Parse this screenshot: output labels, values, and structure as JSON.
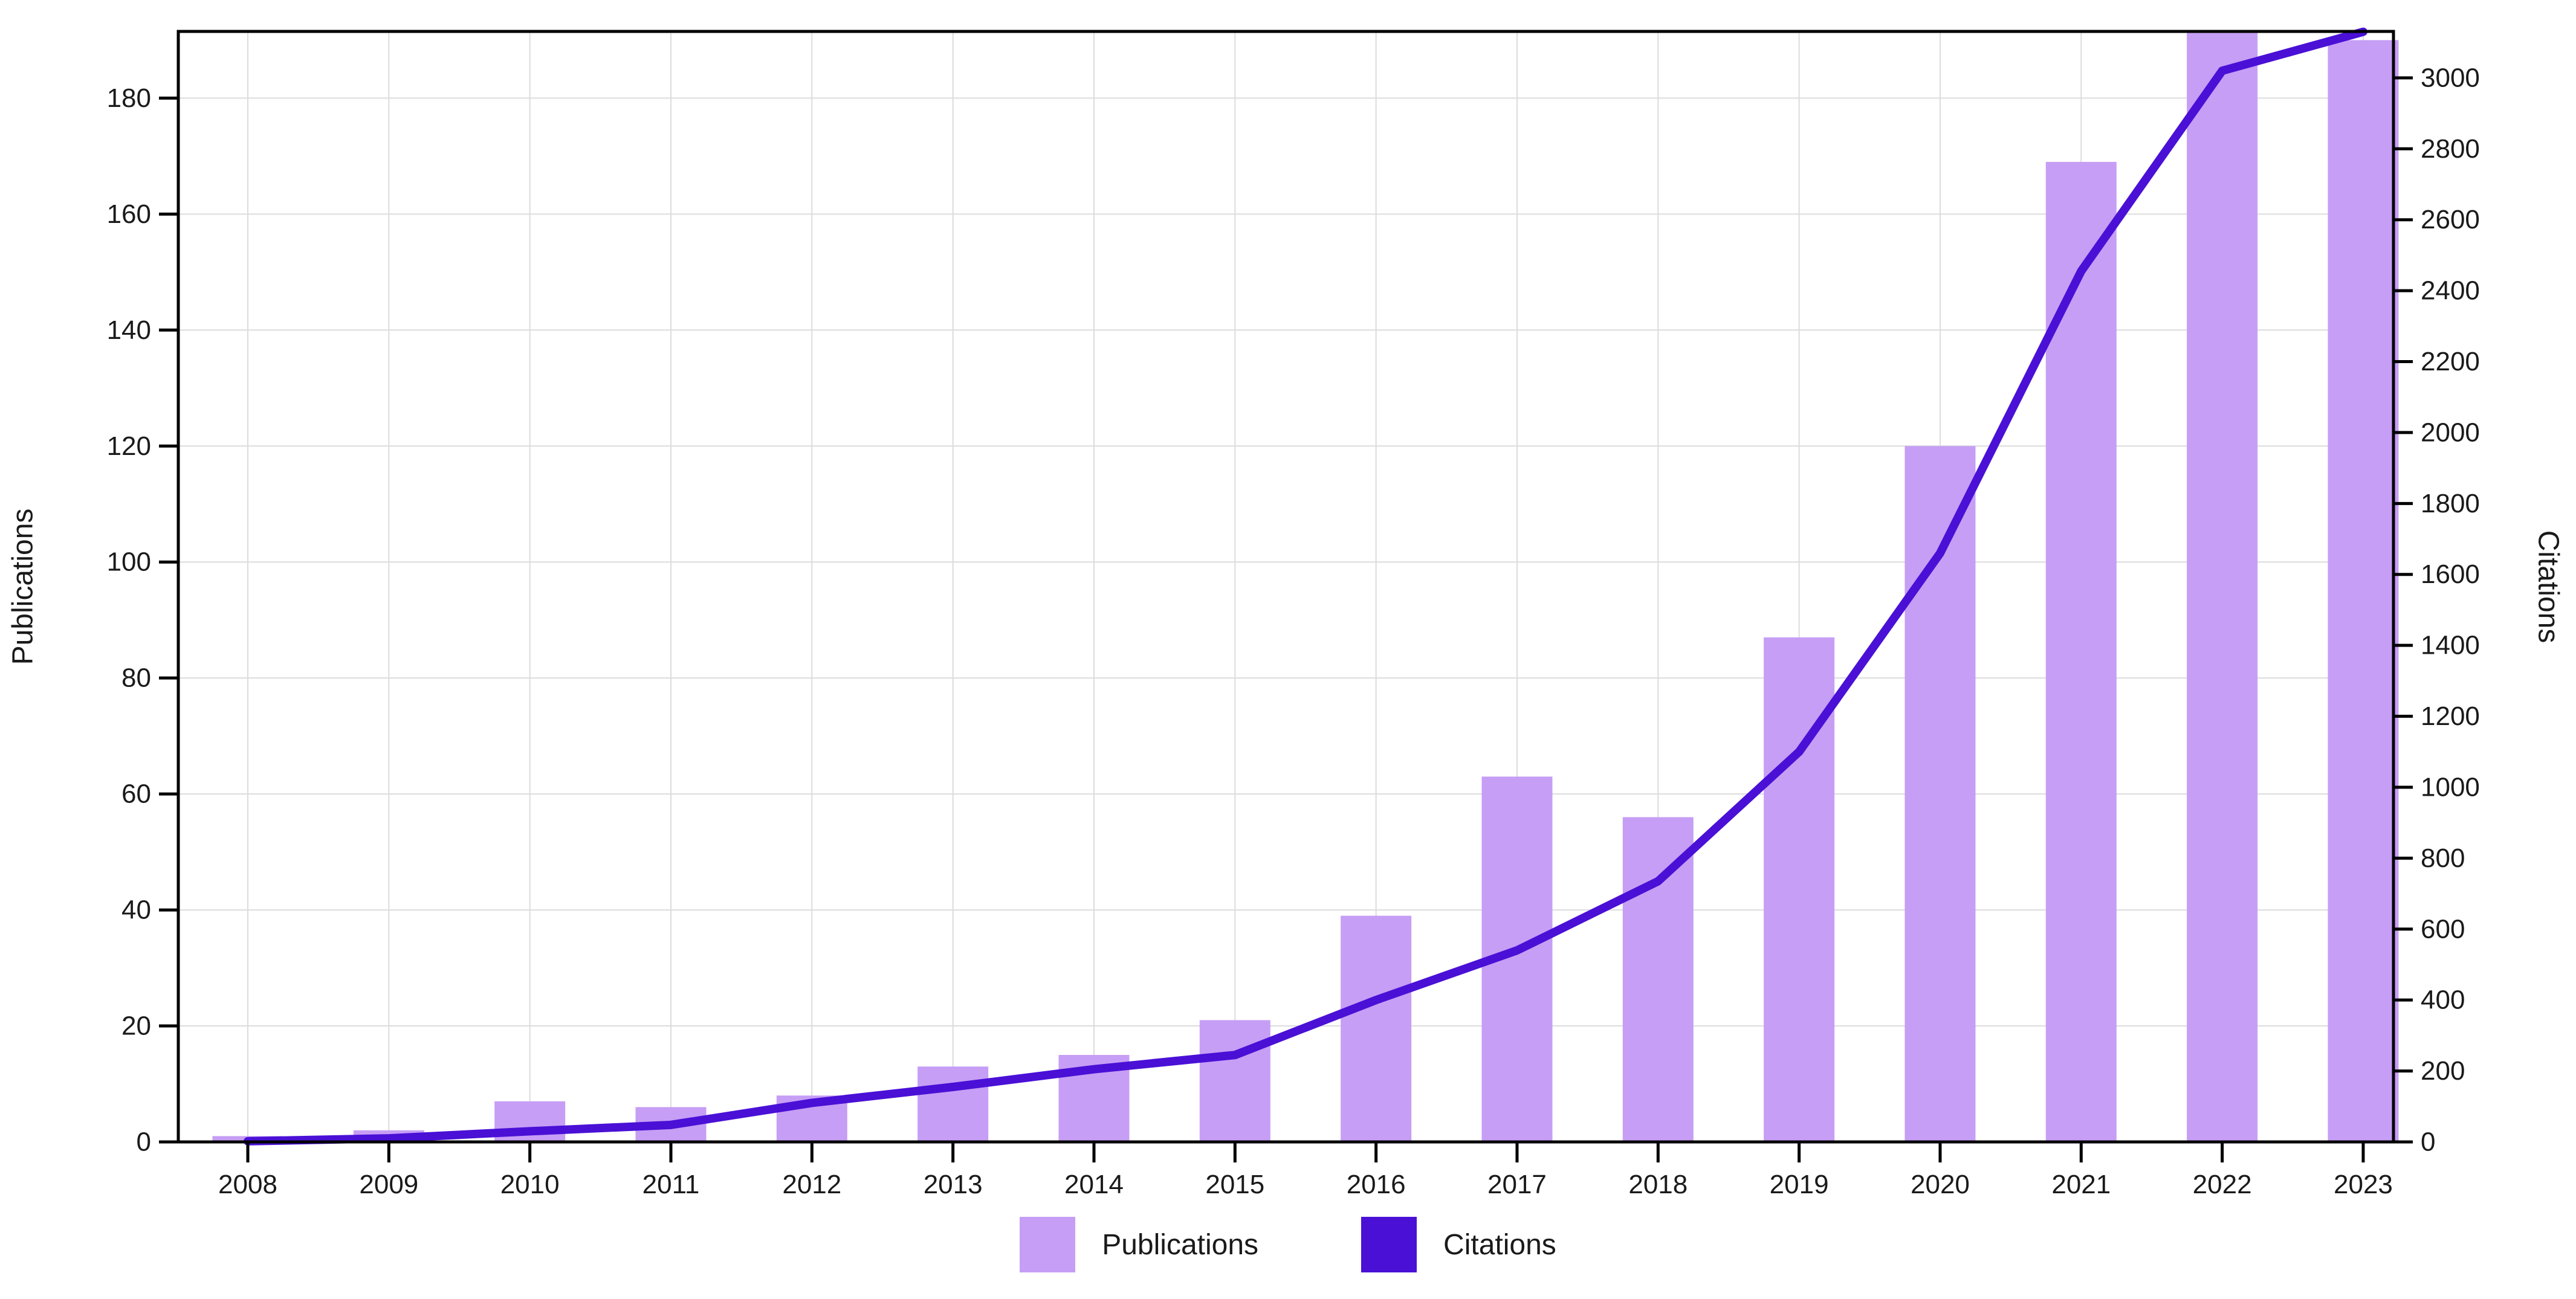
{
  "chart_data": {
    "type": "bar",
    "subtype": "dual-axis bar + line",
    "categories": [
      "2008",
      "2009",
      "2010",
      "2011",
      "2012",
      "2013",
      "2014",
      "2015",
      "2016",
      "2017",
      "2018",
      "2019",
      "2020",
      "2021",
      "2022",
      "2023"
    ],
    "series": [
      {
        "name": "Publications",
        "type": "bar",
        "axis": "left",
        "color": "#c69ef5",
        "values": [
          1,
          2,
          7,
          6,
          8,
          13,
          15,
          21,
          39,
          63,
          56,
          87,
          120,
          169,
          193,
          190
        ]
      },
      {
        "name": "Citations",
        "type": "line",
        "axis": "right",
        "color": "#4a10d6",
        "values": [
          2,
          10,
          30,
          48,
          110,
          155,
          205,
          245,
          400,
          540,
          735,
          1100,
          1660,
          2455,
          3020,
          3130
        ]
      }
    ],
    "title": "",
    "xlabel": "",
    "left_axis": {
      "title": "Publications",
      "ticks": [
        0,
        20,
        40,
        60,
        80,
        100,
        120,
        140,
        160,
        180
      ],
      "range": [
        0,
        191.5
      ]
    },
    "right_axis": {
      "title": "Citations",
      "ticks": [
        0,
        200,
        400,
        600,
        800,
        1000,
        1200,
        1400,
        1600,
        1800,
        2000,
        2200,
        2400,
        2600,
        2800,
        3000
      ],
      "range": [
        0,
        3131
      ]
    },
    "grid": true,
    "legend_position": "bottom-center",
    "note_2022_bar_clipped_at_top": true
  },
  "axis_titles": {
    "left": "Publications",
    "right": "Citations"
  },
  "legend": {
    "publications_label": "Publications",
    "citations_label": "Citations"
  },
  "colors": {
    "bar_fill": "#c69ef5",
    "line_stroke": "#4a10d6",
    "grid_line": "#dcdcdc",
    "axis_frame": "#000000",
    "tick_text": "#1a1a1a",
    "background": "#ffffff"
  }
}
